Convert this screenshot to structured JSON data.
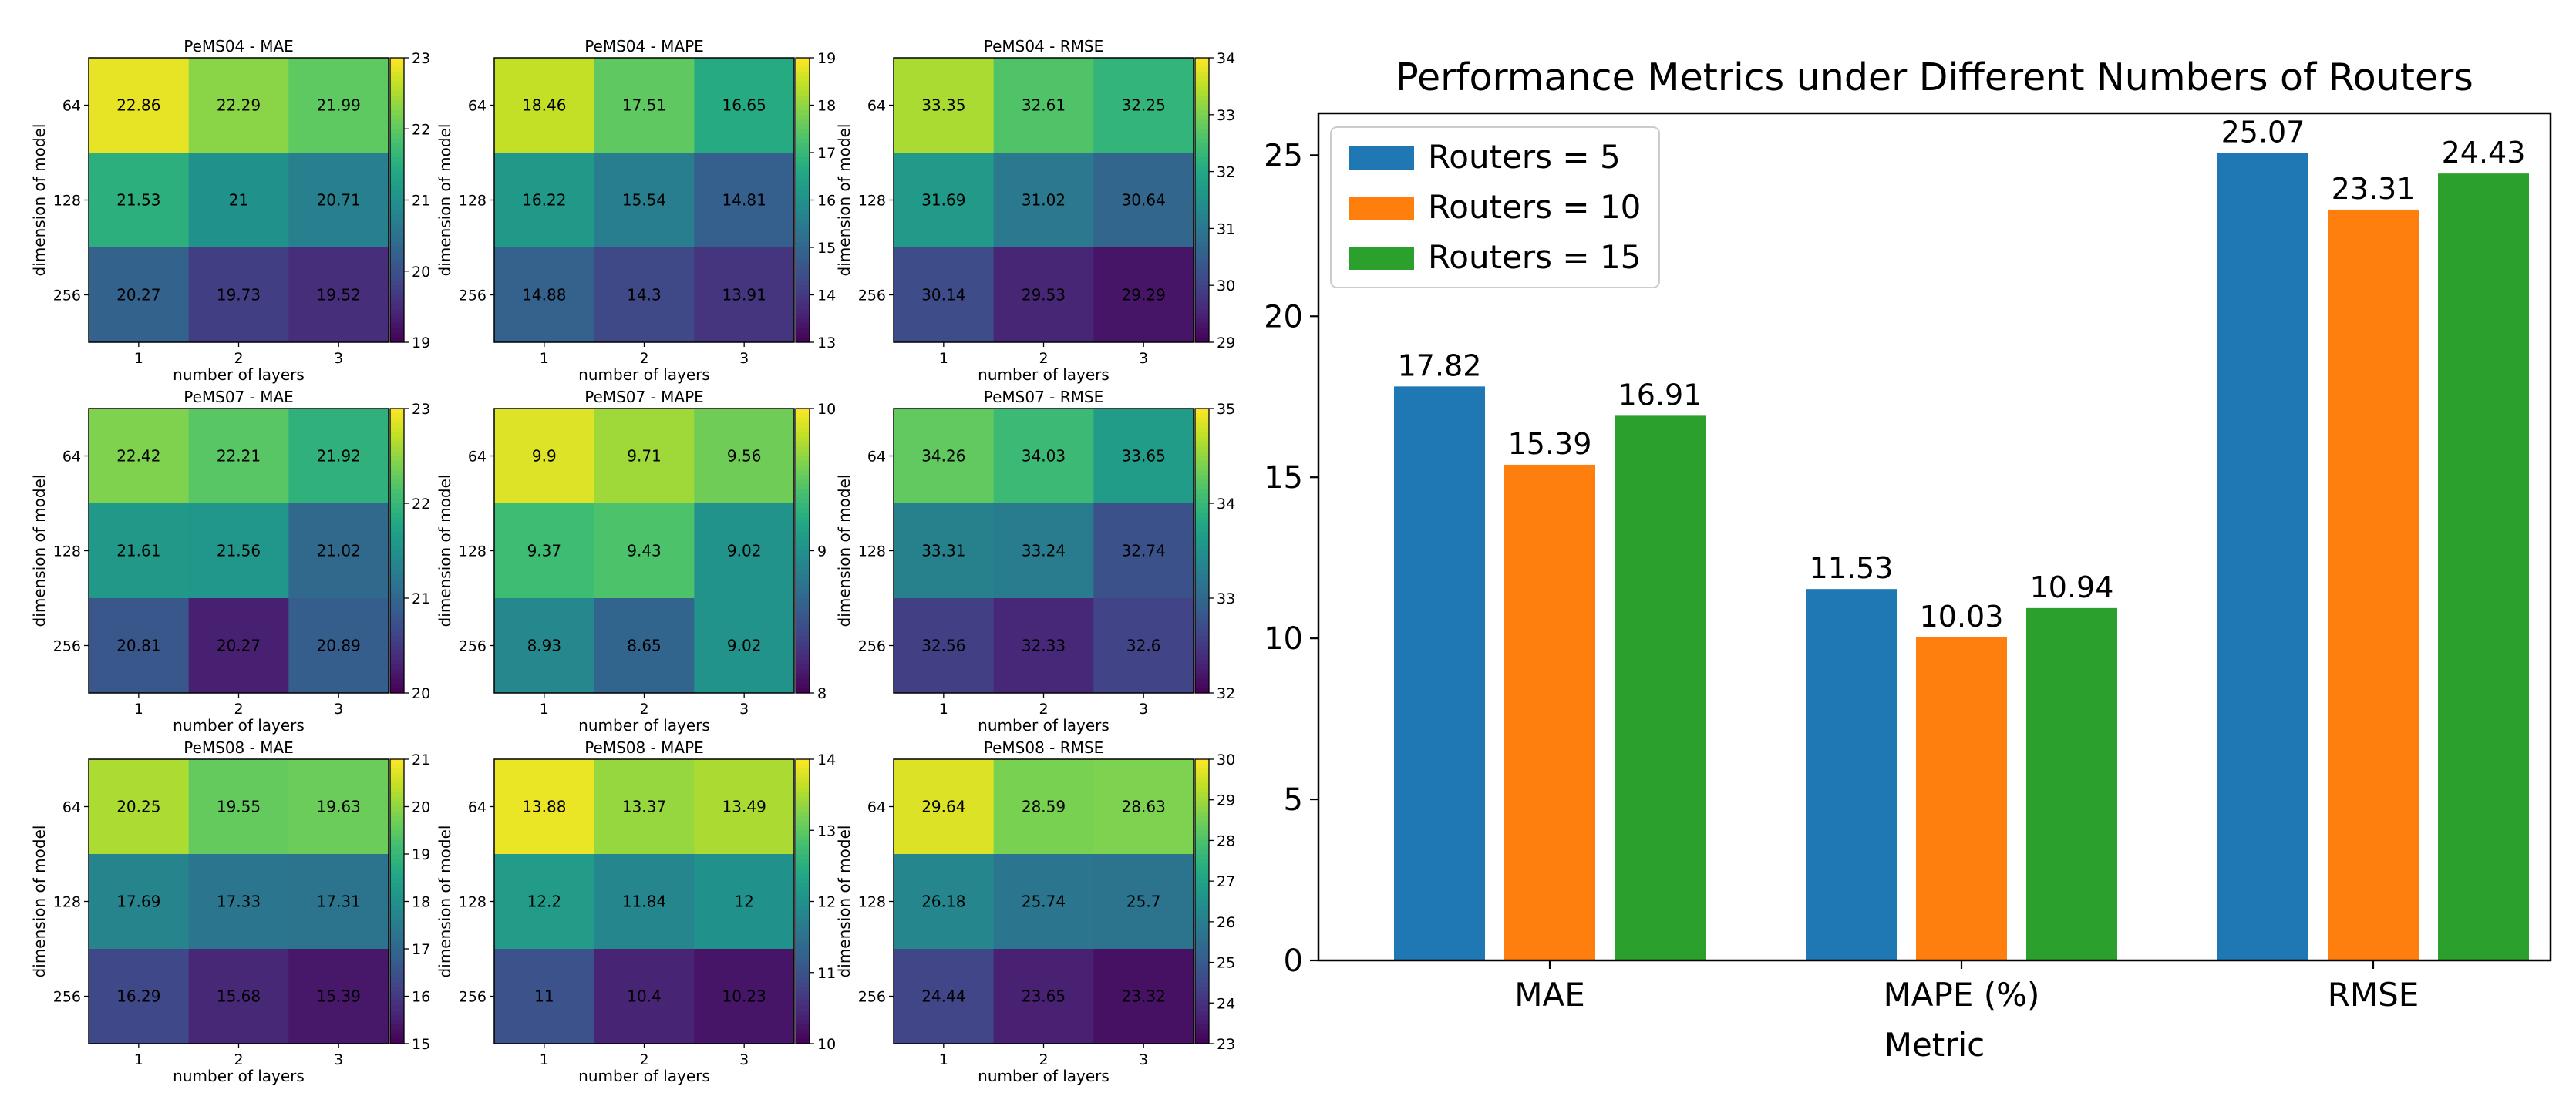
{
  "chart_data": [
    {
      "type": "heatmap",
      "title": "PeMS04 - MAE",
      "xlabel": "number of layers",
      "ylabel": "dimension of model",
      "x_ticks": [
        "1",
        "2",
        "3"
      ],
      "y_ticks": [
        "64",
        "128",
        "256"
      ],
      "values": [
        [
          22.86,
          22.29,
          21.99
        ],
        [
          21.53,
          21.0,
          20.71
        ],
        [
          20.27,
          19.73,
          19.52
        ]
      ],
      "colorbar": {
        "min": 19,
        "max": 23,
        "ticks": [
          19,
          20,
          21,
          22,
          23
        ]
      }
    },
    {
      "type": "heatmap",
      "title": "PeMS04 - MAPE",
      "xlabel": "number of layers",
      "ylabel": "dimension of model",
      "x_ticks": [
        "1",
        "2",
        "3"
      ],
      "y_ticks": [
        "64",
        "128",
        "256"
      ],
      "values": [
        [
          18.46,
          17.51,
          16.65
        ],
        [
          16.22,
          15.54,
          14.81
        ],
        [
          14.88,
          14.3,
          13.91
        ]
      ],
      "colorbar": {
        "min": 13,
        "max": 19,
        "ticks": [
          13,
          14,
          15,
          16,
          17,
          18,
          19
        ]
      }
    },
    {
      "type": "heatmap",
      "title": "PeMS04 - RMSE",
      "xlabel": "number of layers",
      "ylabel": "dimension of model",
      "x_ticks": [
        "1",
        "2",
        "3"
      ],
      "y_ticks": [
        "64",
        "128",
        "256"
      ],
      "values": [
        [
          33.35,
          32.61,
          32.25
        ],
        [
          31.69,
          31.02,
          30.64
        ],
        [
          30.14,
          29.53,
          29.29
        ]
      ],
      "colorbar": {
        "min": 29,
        "max": 34,
        "ticks": [
          29,
          30,
          31,
          32,
          33,
          34
        ]
      }
    },
    {
      "type": "heatmap",
      "title": "PeMS07 - MAE",
      "xlabel": "number of layers",
      "ylabel": "dimension of model",
      "x_ticks": [
        "1",
        "2",
        "3"
      ],
      "y_ticks": [
        "64",
        "128",
        "256"
      ],
      "values": [
        [
          22.42,
          22.21,
          21.92
        ],
        [
          21.61,
          21.56,
          21.02
        ],
        [
          20.81,
          20.27,
          20.89
        ]
      ],
      "colorbar": {
        "min": 20,
        "max": 23,
        "ticks": [
          20,
          21,
          22,
          23
        ]
      }
    },
    {
      "type": "heatmap",
      "title": "PeMS07 - MAPE",
      "xlabel": "number of layers",
      "ylabel": "dimension of model",
      "x_ticks": [
        "1",
        "2",
        "3"
      ],
      "y_ticks": [
        "64",
        "128",
        "256"
      ],
      "values": [
        [
          9.9,
          9.71,
          9.56
        ],
        [
          9.37,
          9.43,
          9.02
        ],
        [
          8.93,
          8.65,
          9.02
        ]
      ],
      "colorbar": {
        "min": 8,
        "max": 10,
        "ticks": [
          8,
          9,
          10
        ]
      }
    },
    {
      "type": "heatmap",
      "title": "PeMS07 - RMSE",
      "xlabel": "number of layers",
      "ylabel": "dimension of model",
      "x_ticks": [
        "1",
        "2",
        "3"
      ],
      "y_ticks": [
        "64",
        "128",
        "256"
      ],
      "values": [
        [
          34.26,
          34.03,
          33.65
        ],
        [
          33.31,
          33.24,
          32.74
        ],
        [
          32.56,
          32.33,
          32.6
        ]
      ],
      "colorbar": {
        "min": 32,
        "max": 35,
        "ticks": [
          32,
          33,
          34,
          35
        ]
      }
    },
    {
      "type": "heatmap",
      "title": "PeMS08 - MAE",
      "xlabel": "number of layers",
      "ylabel": "dimension of model",
      "x_ticks": [
        "1",
        "2",
        "3"
      ],
      "y_ticks": [
        "64",
        "128",
        "256"
      ],
      "values": [
        [
          20.25,
          19.55,
          19.63
        ],
        [
          17.69,
          17.33,
          17.31
        ],
        [
          16.29,
          15.68,
          15.39
        ]
      ],
      "colorbar": {
        "min": 15,
        "max": 21,
        "ticks": [
          15,
          16,
          17,
          18,
          19,
          20,
          21
        ]
      }
    },
    {
      "type": "heatmap",
      "title": "PeMS08 - MAPE",
      "xlabel": "number of layers",
      "ylabel": "dimension of model",
      "x_ticks": [
        "1",
        "2",
        "3"
      ],
      "y_ticks": [
        "64",
        "128",
        "256"
      ],
      "values": [
        [
          13.88,
          13.37,
          13.49
        ],
        [
          12.2,
          11.84,
          12.0
        ],
        [
          11.0,
          10.4,
          10.23
        ]
      ],
      "colorbar": {
        "min": 10,
        "max": 14,
        "ticks": [
          10,
          11,
          12,
          13,
          14
        ]
      }
    },
    {
      "type": "heatmap",
      "title": "PeMS08 - RMSE",
      "xlabel": "number of layers",
      "ylabel": "dimension of model",
      "x_ticks": [
        "1",
        "2",
        "3"
      ],
      "y_ticks": [
        "64",
        "128",
        "256"
      ],
      "values": [
        [
          29.64,
          28.59,
          28.63
        ],
        [
          26.18,
          25.74,
          25.7
        ],
        [
          24.44,
          23.65,
          23.32
        ]
      ],
      "colorbar": {
        "min": 23,
        "max": 30,
        "ticks": [
          23,
          24,
          25,
          26,
          27,
          28,
          29,
          30
        ]
      }
    },
    {
      "type": "bar",
      "title": "Performance Metrics under Different Numbers of Routers",
      "xlabel": "Metric",
      "ylabel": "",
      "categories": [
        "MAE",
        "MAPE (%)",
        "RMSE"
      ],
      "ylim": [
        0,
        26.3
      ],
      "y_ticks": [
        0,
        5,
        10,
        15,
        20,
        25
      ],
      "legend_position": "top-left",
      "series": [
        {
          "name": "Routers = 5",
          "color": "#1f77b4",
          "values": [
            17.82,
            11.53,
            25.07
          ]
        },
        {
          "name": "Routers = 10",
          "color": "#ff7f0e",
          "values": [
            15.39,
            10.03,
            23.31
          ]
        },
        {
          "name": "Routers = 15",
          "color": "#2ca02c",
          "values": [
            16.91,
            10.94,
            24.43
          ]
        }
      ]
    }
  ],
  "colormap": "viridis"
}
